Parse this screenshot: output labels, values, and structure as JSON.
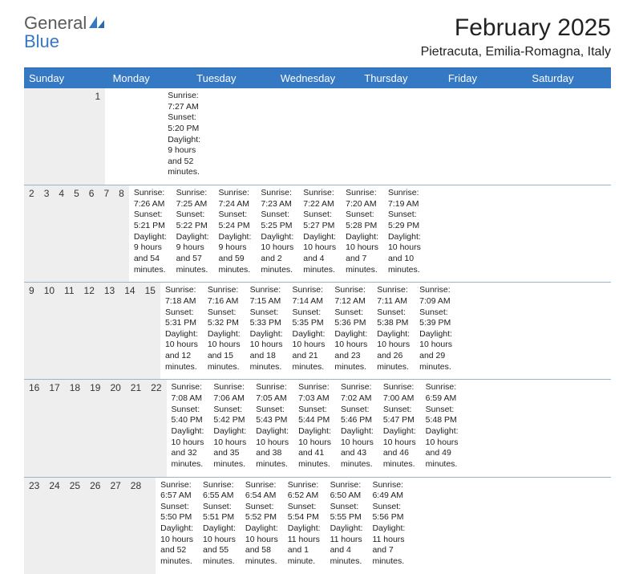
{
  "logo": {
    "general": "General",
    "blue": "Blue"
  },
  "title": "February 2025",
  "location": "Pietracuta, Emilia-Romagna, Italy",
  "colors": {
    "header_bg": "#3578c4",
    "header_text": "#ffffff",
    "border": "#9bb4cd",
    "daynum_bg": "#eeeeee",
    "logo_gray": "#5a5a5a",
    "logo_blue": "#3578c4"
  },
  "dayNames": [
    "Sunday",
    "Monday",
    "Tuesday",
    "Wednesday",
    "Thursday",
    "Friday",
    "Saturday"
  ],
  "weeks": [
    [
      null,
      null,
      null,
      null,
      null,
      null,
      {
        "n": "1",
        "sr": "7:27 AM",
        "ss": "5:20 PM",
        "dl": "9 hours and 52 minutes."
      }
    ],
    [
      {
        "n": "2",
        "sr": "7:26 AM",
        "ss": "5:21 PM",
        "dl": "9 hours and 54 minutes."
      },
      {
        "n": "3",
        "sr": "7:25 AM",
        "ss": "5:22 PM",
        "dl": "9 hours and 57 minutes."
      },
      {
        "n": "4",
        "sr": "7:24 AM",
        "ss": "5:24 PM",
        "dl": "9 hours and 59 minutes."
      },
      {
        "n": "5",
        "sr": "7:23 AM",
        "ss": "5:25 PM",
        "dl": "10 hours and 2 minutes."
      },
      {
        "n": "6",
        "sr": "7:22 AM",
        "ss": "5:27 PM",
        "dl": "10 hours and 4 minutes."
      },
      {
        "n": "7",
        "sr": "7:20 AM",
        "ss": "5:28 PM",
        "dl": "10 hours and 7 minutes."
      },
      {
        "n": "8",
        "sr": "7:19 AM",
        "ss": "5:29 PM",
        "dl": "10 hours and 10 minutes."
      }
    ],
    [
      {
        "n": "9",
        "sr": "7:18 AM",
        "ss": "5:31 PM",
        "dl": "10 hours and 12 minutes."
      },
      {
        "n": "10",
        "sr": "7:16 AM",
        "ss": "5:32 PM",
        "dl": "10 hours and 15 minutes."
      },
      {
        "n": "11",
        "sr": "7:15 AM",
        "ss": "5:33 PM",
        "dl": "10 hours and 18 minutes."
      },
      {
        "n": "12",
        "sr": "7:14 AM",
        "ss": "5:35 PM",
        "dl": "10 hours and 21 minutes."
      },
      {
        "n": "13",
        "sr": "7:12 AM",
        "ss": "5:36 PM",
        "dl": "10 hours and 23 minutes."
      },
      {
        "n": "14",
        "sr": "7:11 AM",
        "ss": "5:38 PM",
        "dl": "10 hours and 26 minutes."
      },
      {
        "n": "15",
        "sr": "7:09 AM",
        "ss": "5:39 PM",
        "dl": "10 hours and 29 minutes."
      }
    ],
    [
      {
        "n": "16",
        "sr": "7:08 AM",
        "ss": "5:40 PM",
        "dl": "10 hours and 32 minutes."
      },
      {
        "n": "17",
        "sr": "7:06 AM",
        "ss": "5:42 PM",
        "dl": "10 hours and 35 minutes."
      },
      {
        "n": "18",
        "sr": "7:05 AM",
        "ss": "5:43 PM",
        "dl": "10 hours and 38 minutes."
      },
      {
        "n": "19",
        "sr": "7:03 AM",
        "ss": "5:44 PM",
        "dl": "10 hours and 41 minutes."
      },
      {
        "n": "20",
        "sr": "7:02 AM",
        "ss": "5:46 PM",
        "dl": "10 hours and 43 minutes."
      },
      {
        "n": "21",
        "sr": "7:00 AM",
        "ss": "5:47 PM",
        "dl": "10 hours and 46 minutes."
      },
      {
        "n": "22",
        "sr": "6:59 AM",
        "ss": "5:48 PM",
        "dl": "10 hours and 49 minutes."
      }
    ],
    [
      {
        "n": "23",
        "sr": "6:57 AM",
        "ss": "5:50 PM",
        "dl": "10 hours and 52 minutes."
      },
      {
        "n": "24",
        "sr": "6:55 AM",
        "ss": "5:51 PM",
        "dl": "10 hours and 55 minutes."
      },
      {
        "n": "25",
        "sr": "6:54 AM",
        "ss": "5:52 PM",
        "dl": "10 hours and 58 minutes."
      },
      {
        "n": "26",
        "sr": "6:52 AM",
        "ss": "5:54 PM",
        "dl": "11 hours and 1 minute."
      },
      {
        "n": "27",
        "sr": "6:50 AM",
        "ss": "5:55 PM",
        "dl": "11 hours and 4 minutes."
      },
      {
        "n": "28",
        "sr": "6:49 AM",
        "ss": "5:56 PM",
        "dl": "11 hours and 7 minutes."
      },
      null
    ]
  ],
  "labels": {
    "sunrise": "Sunrise:",
    "sunset": "Sunset:",
    "daylight": "Daylight:"
  }
}
